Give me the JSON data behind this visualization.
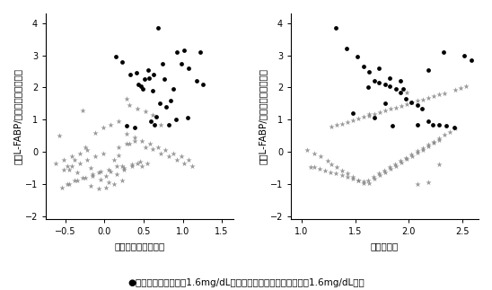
{
  "plot1": {
    "xlabel": "血清クレアチニン値",
    "ylabel": "尿中L-FABP/クレアチニン補正値",
    "xlim": [
      -0.75,
      1.65
    ],
    "ylim": [
      -2.1,
      4.3
    ],
    "xticks": [
      -0.5,
      0.0,
      0.5,
      1.0,
      1.5
    ],
    "yticks": [
      -2,
      -1,
      0,
      1,
      2,
      3,
      4
    ],
    "high_x": [
      0.68,
      0.74,
      0.92,
      1.02,
      0.56,
      1.08,
      1.18,
      1.26,
      0.63,
      0.61,
      0.47,
      0.84,
      0.71,
      0.79,
      0.66,
      0.91,
      1.06,
      0.51,
      0.41,
      0.57,
      0.82,
      0.28,
      0.14,
      0.23,
      0.33,
      0.43,
      0.59,
      1.22,
      0.38,
      0.76,
      0.88,
      0.98,
      0.49,
      0.64
    ],
    "high_y": [
      3.85,
      2.75,
      3.1,
      3.15,
      2.55,
      2.6,
      2.2,
      2.1,
      2.4,
      1.9,
      2.05,
      1.6,
      1.5,
      1.4,
      1.1,
      1.0,
      1.05,
      2.25,
      2.45,
      2.3,
      0.85,
      0.8,
      2.95,
      2.8,
      2.4,
      2.1,
      0.95,
      3.1,
      0.75,
      2.25,
      1.95,
      2.75,
      1.95,
      0.85
    ],
    "low_x": [
      -0.58,
      -0.48,
      -0.38,
      -0.28,
      -0.18,
      -0.08,
      0.02,
      0.12,
      0.22,
      0.32,
      0.42,
      0.52,
      -0.52,
      -0.42,
      -0.32,
      -0.22,
      -0.12,
      -0.02,
      0.08,
      0.18,
      0.28,
      0.38,
      0.48,
      -0.45,
      -0.35,
      -0.25,
      -0.15,
      -0.05,
      0.05,
      0.15,
      0.25,
      0.35,
      0.45,
      0.55,
      -0.55,
      -0.45,
      -0.35,
      -0.25,
      -0.15,
      -0.05,
      0.05,
      0.15,
      0.25,
      0.35,
      -0.62,
      -0.52,
      -0.42,
      -0.32,
      -0.22,
      -0.12,
      -0.02,
      0.08,
      0.18,
      0.28,
      0.38,
      0.48,
      0.58,
      0.68,
      0.78,
      0.88,
      0.98,
      1.08,
      -0.18,
      -0.08,
      0.02,
      0.12,
      0.22,
      0.62,
      0.72,
      0.82,
      0.92,
      1.02,
      1.12,
      -0.28,
      -0.38,
      -0.48,
      0.32,
      0.42,
      0.52,
      0.62,
      0.72,
      0.18,
      0.28
    ],
    "low_y": [
      0.5,
      -0.45,
      -0.25,
      1.3,
      -0.5,
      -0.65,
      -0.75,
      -0.25,
      -0.45,
      0.25,
      -0.35,
      0.15,
      -0.55,
      -0.45,
      -0.35,
      -0.25,
      -0.15,
      -0.05,
      -0.6,
      0.15,
      0.25,
      0.35,
      -0.45,
      -0.55,
      -0.65,
      0.15,
      -0.75,
      -0.85,
      -0.55,
      -0.45,
      -0.5,
      -0.4,
      -0.3,
      -0.35,
      -1.1,
      -1.0,
      -0.9,
      -0.8,
      -0.7,
      -0.6,
      -0.95,
      -0.7,
      -0.55,
      -0.45,
      -0.35,
      -0.25,
      -0.15,
      -0.05,
      0.05,
      0.6,
      0.75,
      0.85,
      0.95,
      0.55,
      0.45,
      0.35,
      0.25,
      0.15,
      0.05,
      -0.05,
      -0.15,
      -0.25,
      -1.05,
      -1.15,
      -1.1,
      -1.0,
      -0.9,
      0.1,
      -0.05,
      -0.15,
      -0.25,
      -0.35,
      -0.45,
      -0.8,
      -0.9,
      -1.0,
      1.45,
      1.35,
      1.25,
      1.15,
      0.85,
      -0.1,
      1.65
    ]
  },
  "plot2": {
    "xlabel": "尿素窒素値",
    "ylabel": "尿中L-FABP/クレアチニン補正値",
    "xlim": [
      0.9,
      2.65
    ],
    "ylim": [
      -2.1,
      4.3
    ],
    "xticks": [
      1.0,
      1.5,
      2.0,
      2.5
    ],
    "yticks": [
      -2,
      -1,
      0,
      1,
      2,
      3,
      4
    ],
    "high_x": [
      1.32,
      1.42,
      1.52,
      1.58,
      1.63,
      1.68,
      1.72,
      1.78,
      1.82,
      1.88,
      1.92,
      1.97,
      2.02,
      2.08,
      2.12,
      2.18,
      2.22,
      2.28,
      2.35,
      2.42,
      2.52,
      2.58,
      1.72,
      1.82,
      1.92,
      1.68,
      1.78,
      2.18,
      1.62,
      1.48,
      2.08,
      1.85,
      2.32,
      1.95
    ],
    "high_y": [
      3.85,
      3.2,
      2.95,
      2.65,
      2.5,
      2.2,
      2.15,
      2.1,
      2.05,
      1.95,
      1.85,
      1.65,
      1.55,
      1.45,
      1.35,
      0.95,
      0.85,
      0.85,
      0.8,
      0.75,
      3.0,
      2.85,
      2.6,
      2.3,
      2.2,
      1.05,
      1.5,
      2.55,
      2.0,
      1.2,
      0.85,
      0.8,
      3.1,
      1.95
    ],
    "low_x": [
      1.05,
      1.12,
      1.18,
      1.24,
      1.28,
      1.33,
      1.38,
      1.43,
      1.48,
      1.53,
      1.58,
      1.62,
      1.67,
      1.72,
      1.77,
      1.82,
      1.87,
      1.92,
      1.97,
      2.02,
      2.08,
      2.13,
      2.18,
      2.23,
      2.28,
      2.33,
      2.38,
      2.43,
      1.12,
      1.17,
      1.22,
      1.27,
      1.32,
      1.38,
      1.43,
      1.48,
      1.53,
      1.58,
      1.63,
      1.68,
      1.73,
      1.78,
      1.83,
      1.88,
      1.93,
      1.98,
      2.03,
      2.08,
      2.13,
      2.18,
      2.23,
      2.28,
      1.28,
      1.33,
      1.38,
      1.43,
      1.48,
      1.53,
      1.58,
      1.63,
      1.68,
      1.73,
      1.78,
      1.83,
      1.88,
      1.93,
      1.98,
      2.03,
      2.08,
      2.13,
      2.18,
      2.23,
      2.28,
      2.33,
      2.43,
      2.48,
      2.53,
      1.08,
      2.18,
      1.63,
      2.28,
      1.98,
      2.08
    ],
    "low_y": [
      0.05,
      -0.05,
      -0.15,
      -0.28,
      -0.38,
      -0.48,
      -0.58,
      -0.68,
      -0.78,
      -0.88,
      -0.98,
      -0.88,
      -0.78,
      -0.68,
      -0.58,
      -0.48,
      -0.38,
      -0.28,
      -0.18,
      -0.08,
      0.02,
      0.12,
      0.22,
      0.32,
      0.42,
      0.52,
      0.62,
      0.72,
      -0.48,
      -0.53,
      -0.58,
      -0.63,
      -0.68,
      -0.73,
      -0.78,
      -0.83,
      -0.88,
      -0.93,
      -0.98,
      -0.83,
      -0.73,
      -0.63,
      -0.53,
      -0.43,
      -0.33,
      -0.23,
      -0.13,
      -0.03,
      0.07,
      0.17,
      0.27,
      0.37,
      0.78,
      0.83,
      0.88,
      0.93,
      0.98,
      1.03,
      1.08,
      1.13,
      1.18,
      1.23,
      1.28,
      1.33,
      1.38,
      1.43,
      1.48,
      1.53,
      1.58,
      1.63,
      1.68,
      1.73,
      1.78,
      1.83,
      1.93,
      1.98,
      2.03,
      -0.48,
      -0.95,
      1.18,
      -0.4,
      1.85,
      -1.0
    ]
  },
  "legend_dot": "●",
  "legend_star": "＊",
  "legend_text1": "血清クレアチニンが1.6mg/dL以上、",
  "legend_text2": "血清クレアチニンが1.6mg/dL未満",
  "high_color": "#000000",
  "low_color": "#888888",
  "bg_color": "#ffffff",
  "font_size_label": 7.5,
  "font_size_tick": 7,
  "font_size_legend": 7.5
}
